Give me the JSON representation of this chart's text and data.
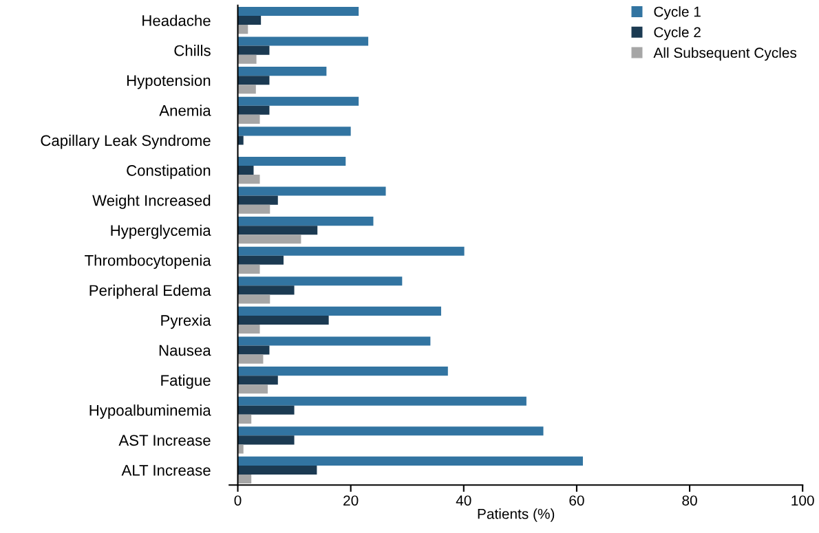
{
  "chart_data": {
    "type": "bar",
    "orientation": "horizontal",
    "xlabel": "Patients (%)",
    "categories": [
      "Headache",
      "Chills",
      "Hypotension",
      "Anemia",
      "Capillary Leak Syndrome",
      "Constipation",
      "Weight Increased",
      "Hyperglycemia",
      "Thrombocytopenia",
      "Peripheral Edema",
      "Pyrexia",
      "Nausea",
      "Fatigue",
      "Hypoalbuminemia",
      "AST Increase",
      "ALT Increase"
    ],
    "series": [
      {
        "name": "Cycle 1",
        "color": "#3274a1",
        "values": [
          21.4,
          23.1,
          15.7,
          21.4,
          20.0,
          19.1,
          26.2,
          24.0,
          40.1,
          29.1,
          36.0,
          34.1,
          37.2,
          51.1,
          54.1,
          61.1
        ]
      },
      {
        "name": "Cycle 2",
        "color": "#1b3a52",
        "values": [
          4.1,
          5.6,
          5.6,
          5.6,
          1.0,
          2.8,
          7.1,
          14.1,
          8.1,
          10.0,
          16.1,
          5.6,
          7.1,
          10.0,
          10.0,
          14.0
        ]
      },
      {
        "name": "All Subsequent Cycles",
        "color": "#a6a6a6",
        "values": [
          1.8,
          3.3,
          3.2,
          3.9,
          0,
          3.9,
          5.7,
          11.2,
          3.9,
          5.7,
          3.9,
          4.5,
          5.3,
          2.4,
          1.0,
          2.4
        ]
      }
    ],
    "xlim": [
      -1.5,
      100
    ],
    "xticks": [
      0,
      20,
      40,
      60,
      80,
      100
    ],
    "legend": "top right"
  }
}
